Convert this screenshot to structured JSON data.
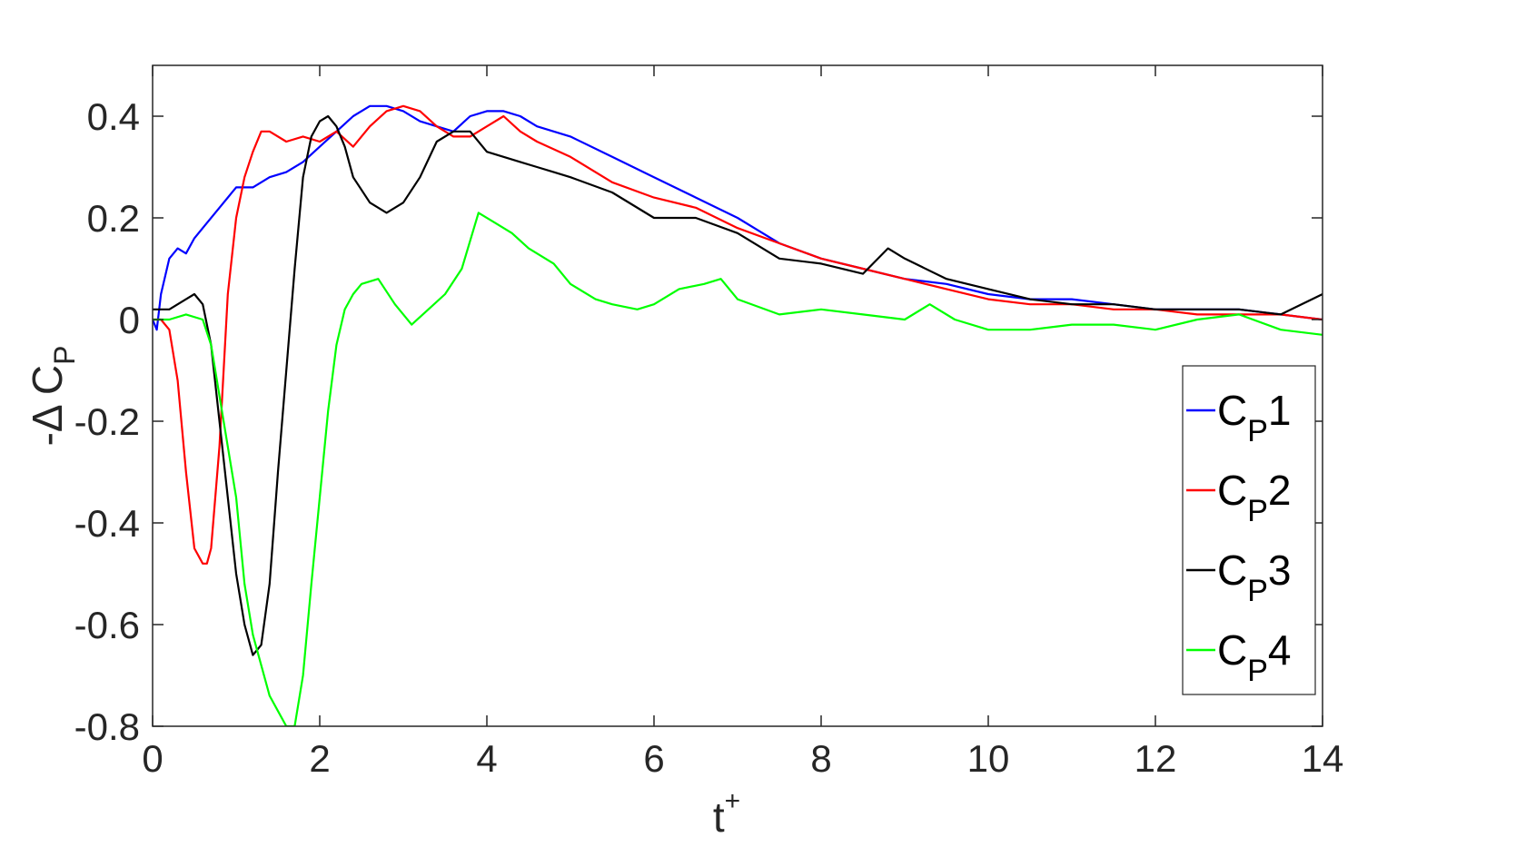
{
  "chart_data": {
    "type": "line",
    "xlabel": {
      "base": "t",
      "sup": "+"
    },
    "ylabel": {
      "prefix": "-Δ C",
      "sub": "P"
    },
    "xlim": [
      0,
      14
    ],
    "ylim": [
      -0.8,
      0.5
    ],
    "xticks": [
      0,
      2,
      4,
      6,
      8,
      10,
      12,
      14
    ],
    "xtick_labels": [
      "0",
      "2",
      "4",
      "6",
      "8",
      "10",
      "12",
      "14"
    ],
    "yticks": [
      -0.8,
      -0.6,
      -0.4,
      -0.2,
      0,
      0.2,
      0.4
    ],
    "ytick_labels": [
      "-0.8",
      "-0.6",
      "-0.4",
      "-0.2",
      "0",
      "0.2",
      "0.4"
    ],
    "grid": false,
    "legend_position": "lower-right",
    "series": [
      {
        "name": "C",
        "sub": "P",
        "suffix": "1",
        "color": "#0000ff",
        "x": [
          0,
          0.05,
          0.1,
          0.2,
          0.3,
          0.4,
          0.5,
          0.6,
          0.8,
          1.0,
          1.2,
          1.4,
          1.6,
          1.8,
          2.0,
          2.2,
          2.4,
          2.6,
          2.8,
          3.0,
          3.2,
          3.4,
          3.6,
          3.8,
          4.0,
          4.2,
          4.4,
          4.6,
          4.8,
          5.0,
          5.5,
          6.0,
          6.5,
          7.0,
          7.5,
          8.0,
          8.5,
          9.0,
          9.5,
          10.0,
          10.5,
          11.0,
          11.5,
          12.0,
          12.5,
          13.0,
          13.5,
          14.0
        ],
        "y": [
          0.0,
          -0.02,
          0.05,
          0.12,
          0.14,
          0.13,
          0.16,
          0.18,
          0.22,
          0.26,
          0.26,
          0.28,
          0.29,
          0.31,
          0.34,
          0.37,
          0.4,
          0.42,
          0.42,
          0.41,
          0.39,
          0.38,
          0.37,
          0.4,
          0.41,
          0.41,
          0.4,
          0.38,
          0.37,
          0.36,
          0.32,
          0.28,
          0.24,
          0.2,
          0.15,
          0.12,
          0.1,
          0.08,
          0.07,
          0.05,
          0.04,
          0.04,
          0.03,
          0.02,
          0.02,
          0.02,
          0.01,
          0.0
        ]
      },
      {
        "name": "C",
        "sub": "P",
        "suffix": "2",
        "color": "#ff0000",
        "x": [
          0,
          0.1,
          0.2,
          0.3,
          0.4,
          0.5,
          0.6,
          0.65,
          0.7,
          0.8,
          0.9,
          1.0,
          1.1,
          1.2,
          1.3,
          1.4,
          1.6,
          1.8,
          2.0,
          2.2,
          2.4,
          2.6,
          2.8,
          3.0,
          3.2,
          3.4,
          3.6,
          3.8,
          4.0,
          4.2,
          4.4,
          4.6,
          5.0,
          5.5,
          6.0,
          6.5,
          7.0,
          7.5,
          8.0,
          8.5,
          9.0,
          9.5,
          10.0,
          10.5,
          11.0,
          11.5,
          12.0,
          12.5,
          13.0,
          13.5,
          14.0
        ],
        "y": [
          0.0,
          0.0,
          -0.02,
          -0.12,
          -0.3,
          -0.45,
          -0.48,
          -0.48,
          -0.45,
          -0.25,
          0.05,
          0.2,
          0.28,
          0.33,
          0.37,
          0.37,
          0.35,
          0.36,
          0.35,
          0.37,
          0.34,
          0.38,
          0.41,
          0.42,
          0.41,
          0.38,
          0.36,
          0.36,
          0.38,
          0.4,
          0.37,
          0.35,
          0.32,
          0.27,
          0.24,
          0.22,
          0.18,
          0.15,
          0.12,
          0.1,
          0.08,
          0.06,
          0.04,
          0.03,
          0.03,
          0.02,
          0.02,
          0.01,
          0.01,
          0.01,
          0.0
        ]
      },
      {
        "name": "C",
        "sub": "P",
        "suffix": "3",
        "color": "#000000",
        "x": [
          0,
          0.2,
          0.4,
          0.5,
          0.6,
          0.7,
          0.8,
          0.9,
          1.0,
          1.1,
          1.2,
          1.3,
          1.4,
          1.5,
          1.6,
          1.7,
          1.8,
          1.9,
          2.0,
          2.1,
          2.2,
          2.3,
          2.4,
          2.6,
          2.8,
          3.0,
          3.2,
          3.4,
          3.6,
          3.8,
          4.0,
          4.2,
          4.4,
          4.6,
          4.8,
          5.0,
          5.5,
          6.0,
          6.5,
          7.0,
          7.5,
          8.0,
          8.5,
          8.8,
          9.0,
          9.5,
          10.0,
          10.5,
          11.0,
          11.5,
          12.0,
          12.5,
          13.0,
          13.5,
          14.0
        ],
        "y": [
          0.02,
          0.02,
          0.04,
          0.05,
          0.03,
          -0.05,
          -0.2,
          -0.35,
          -0.5,
          -0.6,
          -0.66,
          -0.64,
          -0.52,
          -0.3,
          -0.1,
          0.1,
          0.28,
          0.36,
          0.39,
          0.4,
          0.38,
          0.34,
          0.28,
          0.23,
          0.21,
          0.23,
          0.28,
          0.35,
          0.37,
          0.37,
          0.33,
          0.32,
          0.31,
          0.3,
          0.29,
          0.28,
          0.25,
          0.2,
          0.2,
          0.17,
          0.12,
          0.11,
          0.09,
          0.14,
          0.12,
          0.08,
          0.06,
          0.04,
          0.03,
          0.03,
          0.02,
          0.02,
          0.02,
          0.01,
          0.05
        ]
      },
      {
        "name": "C",
        "sub": "P",
        "suffix": "4",
        "color": "#00ff00",
        "x": [
          0,
          0.2,
          0.4,
          0.6,
          0.7,
          0.8,
          1.0,
          1.1,
          1.2,
          1.3,
          1.4,
          1.5,
          1.6,
          1.7,
          1.8,
          1.9,
          2.0,
          2.1,
          2.2,
          2.3,
          2.4,
          2.5,
          2.7,
          2.9,
          3.1,
          3.3,
          3.5,
          3.7,
          3.9,
          4.1,
          4.3,
          4.5,
          4.8,
          5.0,
          5.3,
          5.5,
          5.8,
          6.0,
          6.3,
          6.6,
          6.8,
          7.0,
          7.5,
          8.0,
          8.5,
          9.0,
          9.3,
          9.6,
          10.0,
          10.5,
          11.0,
          11.5,
          12.0,
          12.5,
          13.0,
          13.5,
          14.0
        ],
        "y": [
          0.0,
          0.0,
          0.01,
          0.0,
          -0.05,
          -0.15,
          -0.35,
          -0.52,
          -0.62,
          -0.68,
          -0.74,
          -0.77,
          -0.8,
          -0.8,
          -0.7,
          -0.52,
          -0.35,
          -0.18,
          -0.05,
          0.02,
          0.05,
          0.07,
          0.08,
          0.03,
          -0.01,
          0.02,
          0.05,
          0.1,
          0.21,
          0.19,
          0.17,
          0.14,
          0.11,
          0.07,
          0.04,
          0.03,
          0.02,
          0.03,
          0.06,
          0.07,
          0.08,
          0.04,
          0.01,
          0.02,
          0.01,
          0.0,
          0.03,
          0.0,
          -0.02,
          -0.02,
          -0.01,
          -0.01,
          -0.02,
          0.0,
          0.01,
          -0.02,
          -0.03
        ]
      }
    ]
  }
}
